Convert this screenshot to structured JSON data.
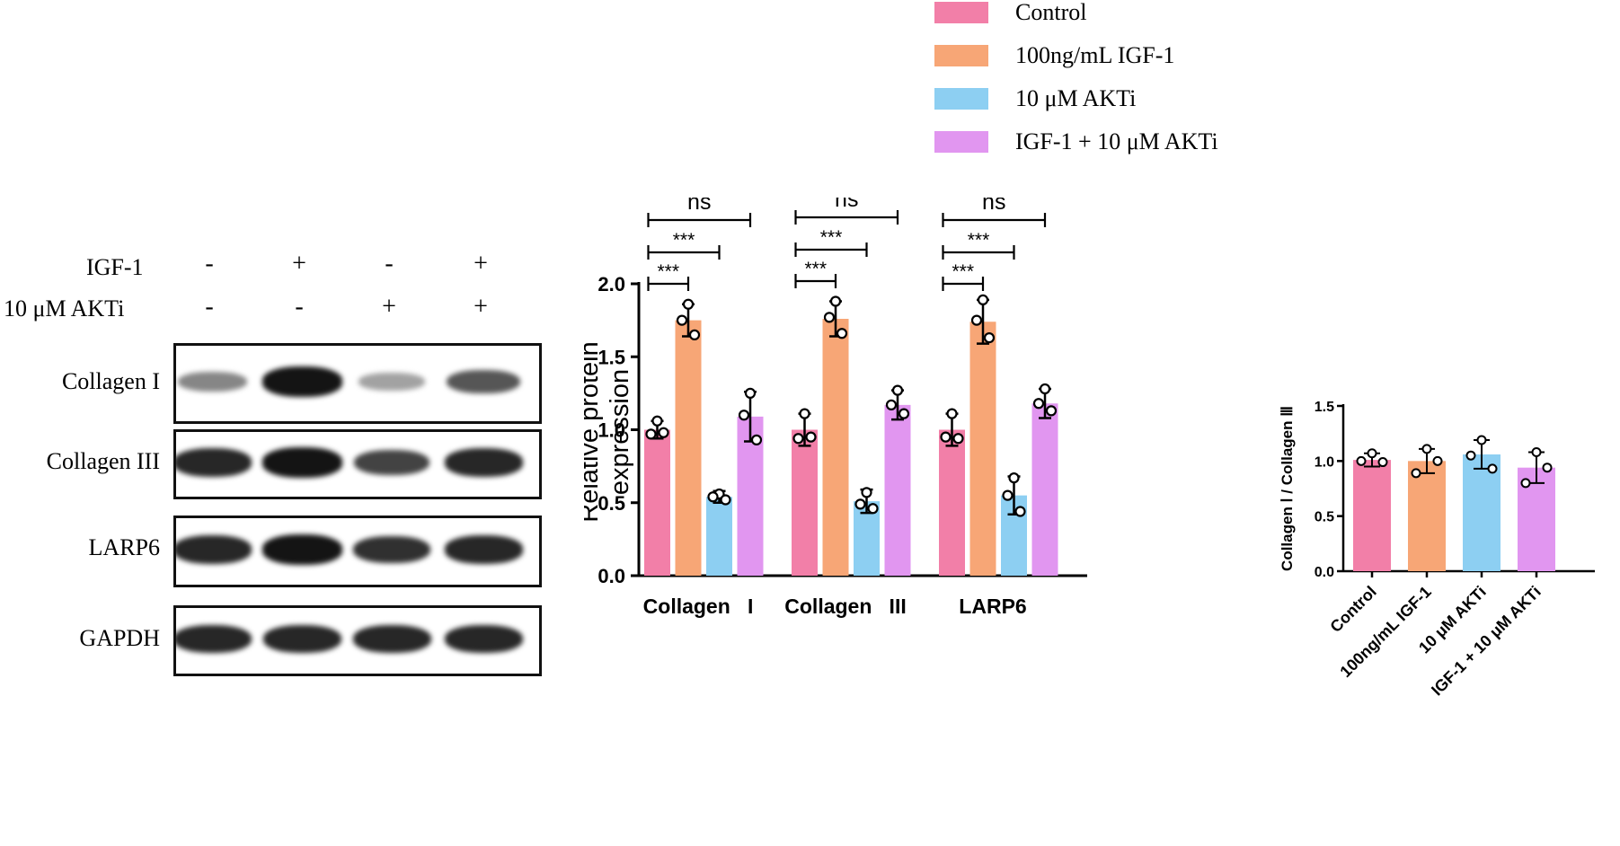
{
  "legend": {
    "items": [
      {
        "label": "Control",
        "color": "#f27fa8"
      },
      {
        "label": "100ng/mL IGF-1",
        "color": "#f7a676"
      },
      {
        "label": "10 μM AKTi",
        "color": "#8dcff2"
      },
      {
        "label": "IGF-1 + 10 μM AKTi",
        "color": "#e196f0"
      }
    ]
  },
  "western_blot": {
    "treatments": [
      {
        "label": "IGF-1",
        "signs": [
          "-",
          "+",
          "-",
          "+"
        ]
      },
      {
        "label": "10 μM AKTi",
        "signs": [
          "-",
          "-",
          "+",
          "+"
        ]
      }
    ],
    "blots": [
      {
        "label": "Collagen I",
        "band_intensity": [
          0.35,
          0.95,
          0.2,
          0.6
        ]
      },
      {
        "label": "Collagen III",
        "band_intensity": [
          0.85,
          0.95,
          0.7,
          0.85
        ]
      },
      {
        "label": "LARP6",
        "band_intensity": [
          0.85,
          0.95,
          0.8,
          0.85
        ]
      },
      {
        "label": "GAPDH",
        "band_intensity": [
          0.85,
          0.85,
          0.85,
          0.85
        ]
      }
    ]
  },
  "chart_data": [
    {
      "type": "bar",
      "ylabel": "Relative protein\nexpression",
      "ylim": [
        0,
        2.0
      ],
      "yticks": [
        "0.0",
        "0.5",
        "1.0",
        "1.5",
        "2.0"
      ],
      "categories": [
        "Collagen   I",
        "Collagen   III",
        "LARP6"
      ],
      "series": [
        {
          "name": "Control",
          "color": "#f27fa8",
          "values": [
            1.0,
            1.0,
            1.0
          ],
          "errors": [
            0.06,
            0.11,
            0.11
          ],
          "points": [
            [
              1.06,
              0.97,
              0.98
            ],
            [
              1.11,
              0.94,
              0.95
            ],
            [
              1.11,
              0.95,
              0.94
            ]
          ]
        },
        {
          "name": "100ng/mL IGF-1",
          "color": "#f7a676",
          "values": [
            1.75,
            1.76,
            1.74
          ],
          "errors": [
            0.11,
            0.12,
            0.15
          ],
          "points": [
            [
              1.86,
              1.75,
              1.65
            ],
            [
              1.88,
              1.77,
              1.66
            ],
            [
              1.89,
              1.75,
              1.63
            ]
          ]
        },
        {
          "name": "10 μM AKTi",
          "color": "#8dcff2",
          "values": [
            0.54,
            0.51,
            0.55
          ],
          "errors": [
            0.04,
            0.08,
            0.13
          ],
          "points": [
            [
              0.56,
              0.54,
              0.52
            ],
            [
              0.57,
              0.49,
              0.46
            ],
            [
              0.67,
              0.55,
              0.44
            ]
          ]
        },
        {
          "name": "IGF-1 + 10 μM AKTi",
          "color": "#e196f0",
          "values": [
            1.09,
            1.17,
            1.18
          ],
          "errors": [
            0.17,
            0.1,
            0.1
          ],
          "points": [
            [
              1.25,
              1.1,
              0.93
            ],
            [
              1.27,
              1.17,
              1.11
            ],
            [
              1.28,
              1.18,
              1.13
            ]
          ]
        }
      ],
      "annotations": [
        {
          "group": 0,
          "from": 0,
          "to": 1,
          "label": "***"
        },
        {
          "group": 0,
          "from": 0,
          "to": 2,
          "label": "***"
        },
        {
          "group": 0,
          "from": 0,
          "to": 3,
          "label": "ns"
        },
        {
          "group": 1,
          "from": 0,
          "to": 1,
          "label": "***"
        },
        {
          "group": 1,
          "from": 0,
          "to": 2,
          "label": "***"
        },
        {
          "group": 1,
          "from": 0,
          "to": 3,
          "label": "ns"
        },
        {
          "group": 2,
          "from": 0,
          "to": 1,
          "label": "***"
        },
        {
          "group": 2,
          "from": 0,
          "to": 2,
          "label": "***"
        },
        {
          "group": 2,
          "from": 0,
          "to": 3,
          "label": "ns"
        }
      ]
    },
    {
      "type": "bar",
      "ylabel": "Collagen Ⅰ / Collagen Ⅲ",
      "ylim": [
        0,
        1.5
      ],
      "yticks": [
        "0.0",
        "0.5",
        "1.0",
        "1.5"
      ],
      "categories": [
        "Control",
        "100ng/mL IGF-1",
        "10 μM AKTi",
        "IGF-1 + 10 μM AKTi"
      ],
      "values": [
        1.01,
        1.0,
        1.06,
        0.94
      ],
      "errors": [
        0.06,
        0.11,
        0.13,
        0.14
      ],
      "colors": [
        "#f27fa8",
        "#f7a676",
        "#8dcff2",
        "#e196f0"
      ],
      "points": [
        [
          1.07,
          1.0,
          0.99
        ],
        [
          1.11,
          0.89,
          1.0
        ],
        [
          1.19,
          1.05,
          0.93
        ],
        [
          1.08,
          0.8,
          0.94
        ]
      ]
    }
  ]
}
